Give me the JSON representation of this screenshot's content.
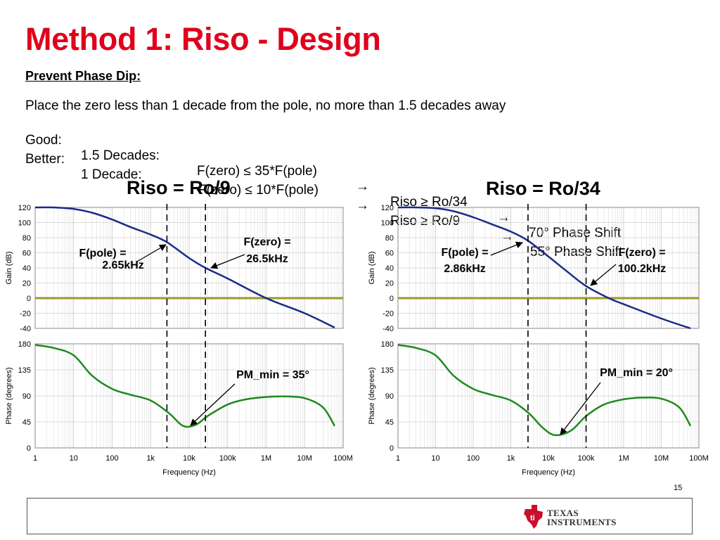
{
  "slide": {
    "title": "Method 1:  Riso - Design",
    "subtitle": "Prevent Phase Dip:",
    "line1": "Place the zero less than 1 decade from the pole, no more than 1.5 decades away",
    "line2": [
      "Good:",
      "1.5 Decades:",
      "F(zero) ≤ 35*F(pole)",
      "→",
      "Riso ≥ Ro/34",
      "→",
      "70° Phase Shift"
    ],
    "line3": [
      "Better:",
      "1 Decade:",
      "F(zero) ≤ 10*F(pole)",
      "→",
      "Riso ≥ Ro/9",
      "→",
      "55° Phase Shift"
    ],
    "page_number": "15",
    "logo": {
      "line1": "Texas",
      "line2": "Instruments",
      "color": "#c8102e"
    }
  },
  "colors": {
    "title": "#e0001b",
    "gain": "#1a2b8a",
    "phase": "#1e8a1e",
    "zero_line": "#9a9a2a",
    "grid": "#dddddd"
  },
  "chart_data": [
    {
      "type": "line",
      "title": "Riso = Ro/9",
      "x_scale": "log",
      "xlabel": "Frequency (Hz)",
      "x_ticks": [
        "1",
        "10",
        "100",
        "1k",
        "10k",
        "100k",
        "1M",
        "10M",
        "100M"
      ],
      "gain": {
        "ylabel": "Gain (dB)",
        "ylim": [
          -40,
          120
        ],
        "y_ticks": [
          "120",
          "100",
          "80",
          "60",
          "40",
          "20",
          "0",
          "-20",
          "-40"
        ],
        "x": [
          1,
          3,
          10,
          30,
          100,
          300,
          1000,
          2650,
          10000,
          26500,
          100000,
          1000000,
          10000000,
          60000000
        ],
        "y": [
          120,
          120,
          118,
          113,
          104,
          94,
          84,
          74,
          53,
          40,
          26,
          0,
          -20,
          -39
        ]
      },
      "phase": {
        "ylabel": "Phase (degrees)",
        "ylim": [
          0,
          180
        ],
        "y_ticks": [
          "180",
          "135",
          "90",
          "45",
          "0"
        ],
        "x": [
          1,
          3,
          10,
          30,
          100,
          300,
          1000,
          3000,
          7000,
          15000,
          30000,
          100000,
          300000,
          1000000,
          3000000,
          10000000,
          30000000,
          60000000
        ],
        "y": [
          178,
          173,
          160,
          125,
          102,
          92,
          82,
          60,
          38,
          40,
          55,
          75,
          84,
          88,
          89,
          86,
          70,
          38
        ]
      },
      "markers": {
        "pole_hz": 2650,
        "zero_hz": 26500
      },
      "annotations": {
        "pole": [
          "F(pole) =",
          "2.65kHz"
        ],
        "zero": [
          "F(zero) =",
          "26.5kHz"
        ],
        "pm": "PM_min = 35°"
      }
    },
    {
      "type": "line",
      "title": "Riso = Ro/34",
      "x_scale": "log",
      "xlabel": "Frequency (Hz)",
      "x_ticks": [
        "1",
        "10",
        "100",
        "1k",
        "10k",
        "100k",
        "1M",
        "10M",
        "100M"
      ],
      "gain": {
        "ylabel": "Gain (dB)",
        "ylim": [
          -40,
          120
        ],
        "y_ticks": [
          "120",
          "100",
          "80",
          "60",
          "40",
          "20",
          "0",
          "-20",
          "-40"
        ],
        "x": [
          1,
          3,
          10,
          30,
          100,
          300,
          1000,
          2860,
          10000,
          30000,
          100200,
          400000,
          1000000,
          10000000,
          60000000
        ],
        "y": [
          120,
          120,
          119,
          115,
          107,
          98,
          88,
          76,
          55,
          36,
          16,
          0,
          -8,
          -27,
          -40
        ]
      },
      "phase": {
        "ylabel": "Phase (degrees)",
        "ylim": [
          0,
          180
        ],
        "y_ticks": [
          "180",
          "135",
          "90",
          "45",
          "0"
        ],
        "x": [
          1,
          3,
          10,
          30,
          100,
          300,
          1000,
          3000,
          7000,
          15000,
          40000,
          100000,
          300000,
          1000000,
          3000000,
          10000000,
          30000000,
          60000000
        ],
        "y": [
          178,
          173,
          160,
          125,
          102,
          92,
          82,
          60,
          35,
          22,
          30,
          55,
          75,
          84,
          87,
          85,
          70,
          38
        ]
      },
      "markers": {
        "pole_hz": 2860,
        "zero_hz": 100200
      },
      "annotations": {
        "pole": [
          "F(pole) =",
          "2.86kHz"
        ],
        "zero": [
          "F(zero) =",
          "100.2kHz"
        ],
        "pm": "PM_min = 20°"
      }
    }
  ]
}
